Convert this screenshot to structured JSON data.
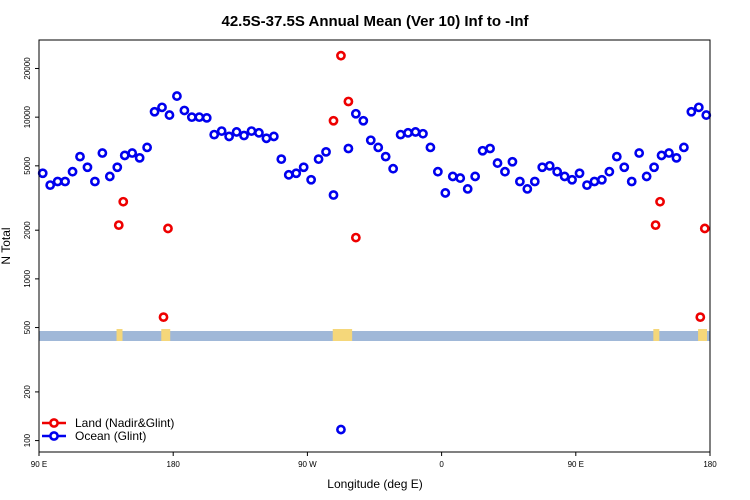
{
  "chart_data": {
    "type": "scatter",
    "title": "42.5S-37.5S Annual Mean (Ver 10)   Inf to -Inf",
    "xlabel": "Longitude (deg E)",
    "ylabel": "N Total",
    "y_scale": "log",
    "ylim": [
      85,
      30000
    ],
    "x_domain_deg": [
      90,
      540
    ],
    "x_ticks": [
      {
        "value": 90,
        "label": "90 E"
      },
      {
        "value": 180,
        "label": "180"
      },
      {
        "value": 270,
        "label": "90 W"
      },
      {
        "value": 360,
        "label": "0"
      },
      {
        "value": 450,
        "label": "90 E"
      },
      {
        "value": 540,
        "label": "180"
      }
    ],
    "y_ticks": [
      {
        "value": 100,
        "label": "100"
      },
      {
        "value": 200,
        "label": "200"
      },
      {
        "value": 500,
        "label": "500"
      },
      {
        "value": 1000,
        "label": "1000"
      },
      {
        "value": 2000,
        "label": "2000"
      },
      {
        "value": 5000,
        "label": "5000"
      },
      {
        "value": 10000,
        "label": "10000"
      },
      {
        "value": 20000,
        "label": "20000"
      }
    ],
    "series": [
      {
        "name": "Ocean (Glint)",
        "color": "#0000ee",
        "points": [
          [
            92.5,
            4500
          ],
          [
            97.5,
            3800
          ],
          [
            102.5,
            4000
          ],
          [
            107.5,
            4000
          ],
          [
            112.5,
            4600
          ],
          [
            117.5,
            5700
          ],
          [
            122.5,
            4900
          ],
          [
            127.5,
            4000
          ],
          [
            132.5,
            6000
          ],
          [
            137.5,
            4300
          ],
          [
            142.5,
            4900
          ],
          [
            147.5,
            5800
          ],
          [
            152.5,
            6000
          ],
          [
            157.5,
            5600
          ],
          [
            162.5,
            6500
          ],
          [
            167.5,
            10800
          ],
          [
            172.5,
            11500
          ],
          [
            177.5,
            10300
          ],
          [
            182.5,
            13500
          ],
          [
            187.5,
            11000
          ],
          [
            192.5,
            10000
          ],
          [
            197.5,
            10000
          ],
          [
            202.5,
            9900
          ],
          [
            207.5,
            7800
          ],
          [
            212.5,
            8200
          ],
          [
            217.5,
            7600
          ],
          [
            222.5,
            8100
          ],
          [
            227.5,
            7700
          ],
          [
            232.5,
            8200
          ],
          [
            237.5,
            8000
          ],
          [
            242.5,
            7400
          ],
          [
            247.5,
            7600
          ],
          [
            252.5,
            5500
          ],
          [
            257.5,
            4400
          ],
          [
            262.5,
            4500
          ],
          [
            267.5,
            4900
          ],
          [
            272.5,
            4100
          ],
          [
            277.5,
            5500
          ],
          [
            282.5,
            6100
          ],
          [
            287.5,
            3300
          ],
          [
            292.5,
            117
          ],
          [
            297.5,
            6400
          ],
          [
            302.5,
            10500
          ],
          [
            307.5,
            9500
          ],
          [
            312.5,
            7200
          ],
          [
            317.5,
            6500
          ],
          [
            322.5,
            5700
          ],
          [
            327.5,
            4800
          ],
          [
            332.5,
            7800
          ],
          [
            337.5,
            8000
          ],
          [
            342.5,
            8100
          ],
          [
            347.5,
            7900
          ],
          [
            352.5,
            6500
          ],
          [
            357.5,
            4600
          ],
          [
            362.5,
            3400
          ],
          [
            367.5,
            4300
          ],
          [
            372.5,
            4200
          ],
          [
            377.5,
            3600
          ],
          [
            382.5,
            4300
          ],
          [
            387.5,
            6200
          ],
          [
            392.5,
            6400
          ],
          [
            397.5,
            5200
          ],
          [
            402.5,
            4600
          ],
          [
            407.5,
            5300
          ],
          [
            412.5,
            4000
          ],
          [
            417.5,
            3600
          ],
          [
            422.5,
            4000
          ],
          [
            427.5,
            4900
          ],
          [
            432.5,
            5000
          ],
          [
            437.5,
            4600
          ],
          [
            442.5,
            4300
          ],
          [
            447.5,
            4100
          ],
          [
            452.5,
            4500
          ],
          [
            457.5,
            3800
          ],
          [
            462.5,
            4000
          ],
          [
            467.5,
            4100
          ],
          [
            472.5,
            4600
          ],
          [
            477.5,
            5700
          ],
          [
            482.5,
            4900
          ],
          [
            487.5,
            4000
          ],
          [
            492.5,
            6000
          ],
          [
            497.5,
            4300
          ],
          [
            502.5,
            4900
          ],
          [
            507.5,
            5800
          ],
          [
            512.5,
            6000
          ],
          [
            517.5,
            5600
          ],
          [
            522.5,
            6500
          ],
          [
            527.5,
            10800
          ],
          [
            532.5,
            11500
          ],
          [
            537.5,
            10300
          ]
        ]
      },
      {
        "name": "Land (Nadir&Glint)",
        "color": "#ee0000",
        "points": [
          [
            143.5,
            2150
          ],
          [
            146.5,
            3000
          ],
          [
            173.5,
            580
          ],
          [
            176.5,
            2050
          ],
          [
            287.5,
            9500
          ],
          [
            292.5,
            24000
          ],
          [
            297.5,
            12500
          ],
          [
            302.5,
            1800
          ],
          [
            503.5,
            2150
          ],
          [
            506.5,
            3000
          ],
          [
            533.5,
            580
          ],
          [
            536.5,
            2050
          ]
        ]
      }
    ],
    "band": {
      "description": "land/ocean mask strip",
      "ocean_color": "#a0b8d8",
      "land_color": "#f5d77a",
      "land_ranges_deg": [
        [
          142,
          146
        ],
        [
          172,
          178
        ],
        [
          287,
          300
        ],
        [
          502,
          506
        ],
        [
          532,
          538
        ]
      ]
    },
    "legend": {
      "position": "bottom-left",
      "entries": [
        {
          "label": "Land (Nadir&Glint)",
          "color": "#ee0000"
        },
        {
          "label": "Ocean (Glint)",
          "color": "#0000ee"
        }
      ]
    }
  }
}
